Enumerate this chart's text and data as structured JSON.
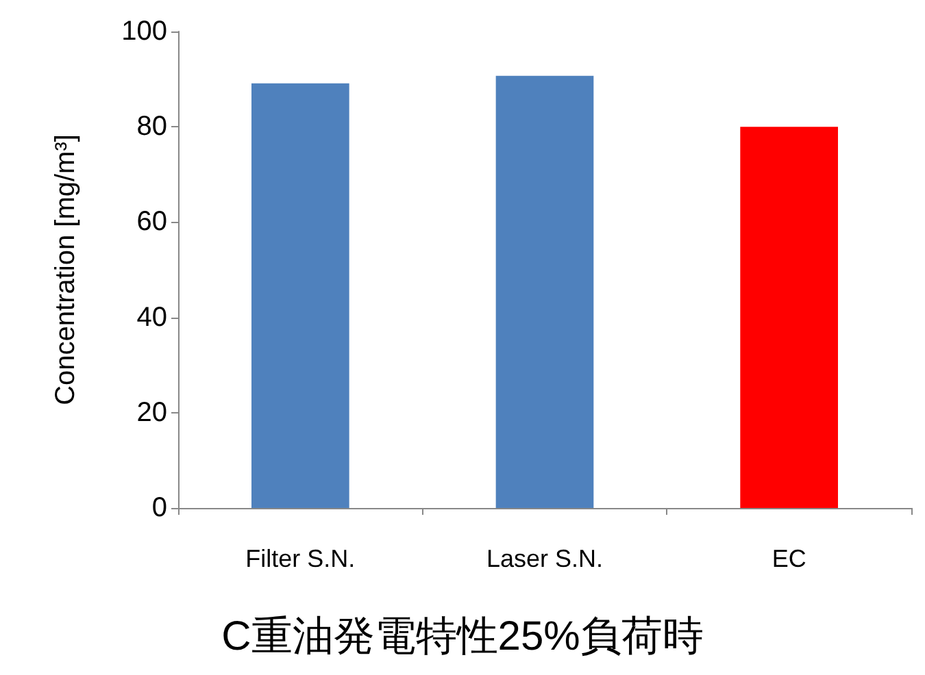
{
  "chart_data": {
    "type": "bar",
    "title": "C重油発電特性25%負荷時",
    "ylabel": "Concentration [mg/m³]",
    "categories": [
      "Filter S.N.",
      "Laser S.N.",
      "EC"
    ],
    "values": [
      89.1,
      90.7,
      80
    ],
    "colors": [
      "#4f81bd",
      "#4f81bd",
      "#ff0000"
    ],
    "ylim": [
      0,
      100
    ],
    "yticks": [
      0,
      20,
      40,
      60,
      80,
      100
    ],
    "grid": false
  }
}
